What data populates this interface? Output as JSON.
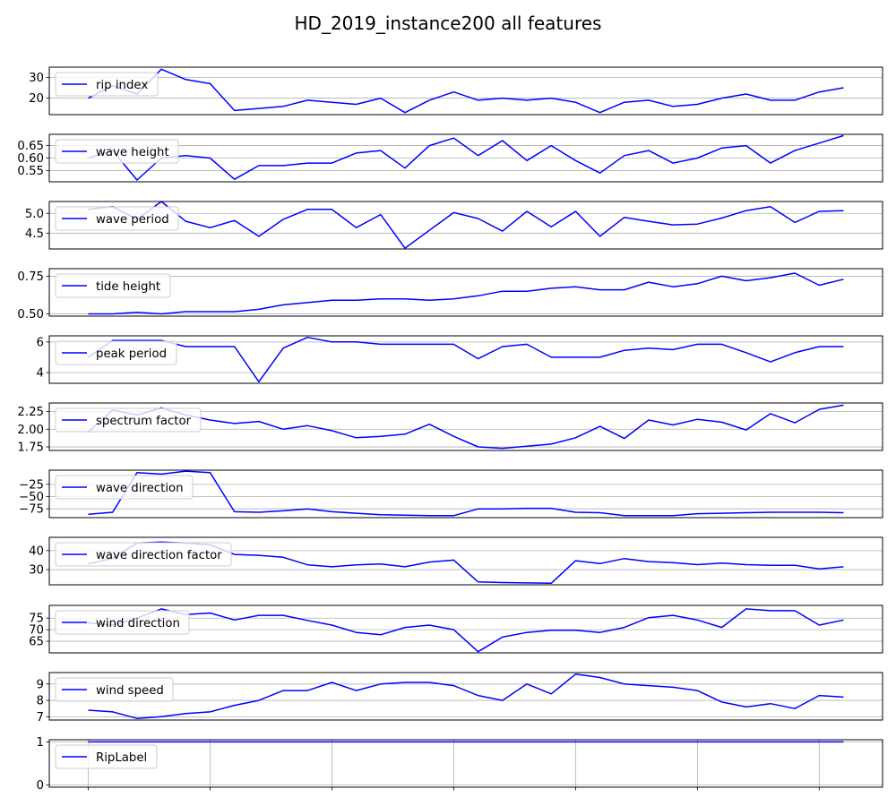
{
  "figure": {
    "title": "HD_2019_instance200 all features"
  },
  "chart_data": [
    {
      "type": "line",
      "legend": "rip index",
      "legend_position": "upper-left",
      "color": "#0000ff",
      "y": [
        20,
        26,
        22,
        34,
        29,
        27,
        14,
        15,
        16,
        19,
        18,
        17,
        20,
        13,
        19,
        23,
        19,
        20,
        19,
        20,
        18,
        13,
        18,
        19,
        16,
        17,
        20,
        22,
        19,
        19,
        23,
        25
      ],
      "ylim": [
        12,
        35
      ],
      "yticks": [
        20,
        30
      ],
      "ytick_labels": [
        "20",
        "30"
      ],
      "grid": true
    },
    {
      "type": "line",
      "legend": "wave height",
      "legend_position": "upper-left",
      "color": "#0000ff",
      "y": [
        0.6,
        0.63,
        0.512,
        0.6,
        0.61,
        0.6,
        0.515,
        0.57,
        0.57,
        0.58,
        0.58,
        0.62,
        0.63,
        0.56,
        0.65,
        0.68,
        0.61,
        0.67,
        0.59,
        0.65,
        0.59,
        0.54,
        0.61,
        0.63,
        0.58,
        0.6,
        0.64,
        0.65,
        0.58,
        0.63,
        0.66,
        0.69
      ],
      "ylim": [
        0.505,
        0.695
      ],
      "yticks": [
        0.55,
        0.6,
        0.65
      ],
      "ytick_labels": [
        "0.55",
        "0.60",
        "0.65"
      ],
      "grid": true
    },
    {
      "type": "line",
      "legend": "wave period",
      "legend_position": "upper-left",
      "color": "#0000ff",
      "y": [
        5.1,
        5.17,
        4.85,
        5.3,
        4.8,
        4.64,
        4.82,
        4.42,
        4.85,
        5.1,
        5.1,
        4.64,
        4.97,
        4.12,
        4.57,
        5.02,
        4.87,
        4.55,
        5.05,
        4.66,
        5.05,
        4.42,
        4.9,
        4.8,
        4.71,
        4.73,
        4.88,
        5.07,
        5.17,
        4.77,
        5.05,
        5.07
      ],
      "ylim": [
        4.1,
        5.3
      ],
      "yticks": [
        4.5,
        5.0
      ],
      "ytick_labels": [
        "4.5",
        "5.0"
      ],
      "grid": true
    },
    {
      "type": "line",
      "legend": "tide height",
      "legend_position": "upper-left",
      "color": "#0000ff",
      "y": [
        0.5,
        0.5,
        0.51,
        0.5,
        0.515,
        0.515,
        0.515,
        0.53,
        0.56,
        0.575,
        0.59,
        0.59,
        0.6,
        0.6,
        0.59,
        0.6,
        0.62,
        0.65,
        0.65,
        0.67,
        0.68,
        0.66,
        0.66,
        0.71,
        0.68,
        0.7,
        0.75,
        0.72,
        0.74,
        0.77,
        0.69,
        0.73
      ],
      "ylim": [
        0.485,
        0.8
      ],
      "yticks": [
        0.5,
        0.75
      ],
      "ytick_labels": [
        "0.50",
        "0.75"
      ],
      "grid": true
    },
    {
      "type": "line",
      "legend": "peak period",
      "legend_position": "upper-left",
      "color": "#0000ff",
      "y": [
        5.0,
        6.1,
        6.1,
        6.1,
        5.7,
        5.7,
        5.7,
        3.4,
        5.6,
        6.3,
        6.0,
        6.0,
        5.85,
        5.85,
        5.85,
        5.85,
        4.9,
        5.7,
        5.85,
        5.0,
        5.0,
        5.0,
        5.45,
        5.6,
        5.5,
        5.85,
        5.85,
        5.3,
        4.7,
        5.3,
        5.7,
        5.7
      ],
      "ylim": [
        3.3,
        6.4
      ],
      "yticks": [
        4,
        6
      ],
      "ytick_labels": [
        "4",
        "6"
      ],
      "grid": true
    },
    {
      "type": "line",
      "legend": "spectrum factor",
      "legend_position": "upper-left",
      "color": "#0000ff",
      "y": [
        1.96,
        2.27,
        2.2,
        2.3,
        2.2,
        2.13,
        2.08,
        2.11,
        2.0,
        2.05,
        1.98,
        1.88,
        1.9,
        1.93,
        2.07,
        1.9,
        1.75,
        1.73,
        1.76,
        1.79,
        1.88,
        2.04,
        1.87,
        2.13,
        2.06,
        2.14,
        2.1,
        1.99,
        2.22,
        2.09,
        2.28,
        2.34
      ],
      "ylim": [
        1.7,
        2.37
      ],
      "yticks": [
        1.75,
        2.0,
        2.25
      ],
      "ytick_labels": [
        "1.75",
        "2.00",
        "2.25"
      ],
      "grid": true
    },
    {
      "type": "line",
      "legend": "wave direction",
      "legend_position": "upper-left",
      "color": "#0000ff",
      "y": [
        -86,
        -82,
        -1,
        -4,
        2,
        -1,
        -81,
        -82,
        -79,
        -75,
        -81,
        -84,
        -87,
        -88,
        -89,
        -89,
        -75,
        -75,
        -74,
        -74,
        -82,
        -83,
        -89,
        -89,
        -89,
        -85,
        -84,
        -83,
        -82,
        -82,
        -82,
        -83
      ],
      "ylim": [
        -93,
        4
      ],
      "yticks": [
        -75,
        -50,
        -25
      ],
      "ytick_labels": [
        "−75",
        "−50",
        "−25"
      ],
      "grid": true
    },
    {
      "type": "line",
      "legend": "wave direction factor",
      "legend_position": "upper-left",
      "color": "#0000ff",
      "y": [
        33,
        36,
        44,
        44.5,
        44,
        43,
        38,
        37.5,
        36.5,
        32.5,
        31.5,
        32.5,
        33,
        31.5,
        34,
        35,
        23.5,
        23.2,
        23,
        22.8,
        34.7,
        33.2,
        35.8,
        34.2,
        33.7,
        32.6,
        33.4,
        32.6,
        32.3,
        32.3,
        30.4,
        31.5
      ],
      "ylim": [
        22,
        47
      ],
      "yticks": [
        30,
        40
      ],
      "ytick_labels": [
        "30",
        "40"
      ],
      "grid": true
    },
    {
      "type": "line",
      "legend": "wind direction",
      "legend_position": "upper-left",
      "color": "#0000ff",
      "y": [
        73,
        72,
        75,
        79,
        76.5,
        77.2,
        74.2,
        76.2,
        76.2,
        74,
        72,
        68.8,
        67.8,
        71,
        72,
        70,
        60.5,
        66.8,
        68.8,
        69.8,
        69.8,
        68.8,
        71,
        75.2,
        76.2,
        74.2,
        71,
        79,
        78.2,
        78.2,
        72,
        74.2
      ],
      "ylim": [
        60,
        80.5
      ],
      "yticks": [
        65,
        70,
        75
      ],
      "ytick_labels": [
        "65",
        "70",
        "75"
      ],
      "grid": true
    },
    {
      "type": "line",
      "legend": "wind speed",
      "legend_position": "upper-left",
      "color": "#0000ff",
      "y": [
        7.4,
        7.3,
        6.9,
        7.0,
        7.2,
        7.3,
        7.7,
        8.0,
        8.6,
        8.6,
        9.1,
        8.6,
        9.0,
        9.1,
        9.1,
        8.9,
        8.3,
        8.0,
        9.0,
        8.4,
        9.6,
        9.4,
        9.0,
        8.9,
        8.8,
        8.6,
        7.9,
        7.6,
        7.8,
        7.5,
        8.3,
        8.2
      ],
      "ylim": [
        6.8,
        9.7
      ],
      "yticks": [
        7,
        8,
        9
      ],
      "ytick_labels": [
        "7",
        "8",
        "9"
      ],
      "grid": true
    },
    {
      "type": "line",
      "legend": "RipLabel",
      "legend_position": "upper-left",
      "color": "#0000ff",
      "y": [
        1,
        1,
        1,
        1,
        1,
        1,
        1,
        1,
        1,
        1,
        1,
        1,
        1,
        1,
        1,
        1,
        1,
        1,
        1,
        1,
        1,
        1,
        1,
        1,
        1,
        1,
        1,
        1,
        1,
        1,
        1,
        1
      ],
      "ylim": [
        -0.05,
        1.05
      ],
      "yticks": [
        0,
        1
      ],
      "ytick_labels": [
        "0",
        "1"
      ],
      "xticks": [
        0,
        5,
        10,
        15,
        20,
        25,
        30
      ],
      "xtick_labels": [
        "",
        "",
        "",
        "",
        "",
        "",
        ""
      ],
      "grid": true
    }
  ]
}
